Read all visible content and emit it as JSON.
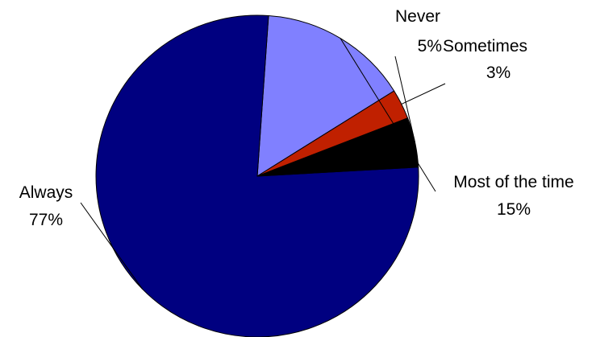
{
  "chart_data": {
    "type": "pie",
    "slices": [
      {
        "label": "Most of the time",
        "value": 15,
        "value_label": "15%",
        "color": "#8080FF"
      },
      {
        "label": "Always",
        "value": 77,
        "value_label": "77%",
        "color": "#000080"
      },
      {
        "label": "Never",
        "value": 5,
        "value_label": "5%",
        "color": "#000000"
      },
      {
        "label": "Sometimes",
        "value": 3,
        "value_label": "3%",
        "color": "#C02000"
      }
    ],
    "unit": "%",
    "legend": "none",
    "data_labels": "outside-with-leaders"
  }
}
